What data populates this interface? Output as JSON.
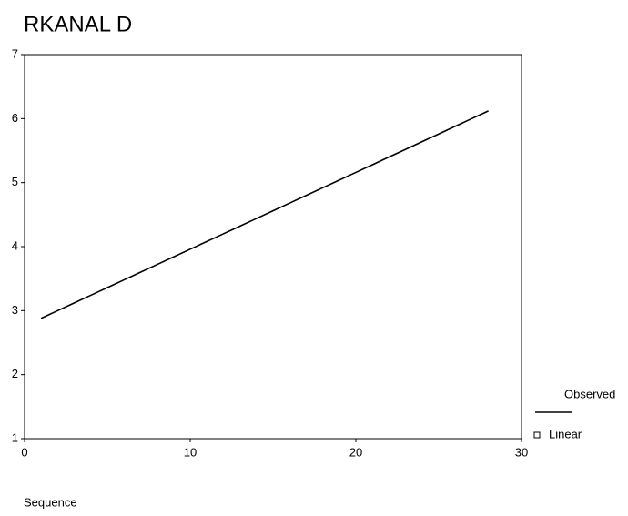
{
  "chart_data": {
    "type": "line",
    "title": "RKANAL D",
    "x_label": "Sequence",
    "x": [
      1,
      2,
      3,
      4,
      5,
      6,
      7,
      8,
      9,
      10,
      11,
      12,
      13,
      14,
      15,
      16,
      17,
      18,
      19,
      20,
      21,
      22,
      23,
      24,
      25,
      26,
      27,
      28
    ],
    "series": [
      {
        "name": "Observed",
        "color": "#000000",
        "values": [
          2.88,
          3,
          3.12,
          3.24,
          3.36,
          3.48,
          3.6,
          3.72,
          3.84,
          3.96,
          4.08,
          4.2,
          4.32,
          4.44,
          4.56,
          4.68,
          4.8,
          4.92,
          5.04,
          5.16,
          5.28,
          5.4,
          5.52,
          5.64,
          5.76,
          5.88,
          6,
          6.12
        ]
      }
    ],
    "legend": [
      {
        "name": "Observed",
        "marker": "line"
      },
      {
        "name": "Linear",
        "marker": "square"
      }
    ],
    "xlim": [
      0,
      30
    ],
    "xticks": [
      0,
      10,
      20,
      30
    ],
    "ylim": [
      1,
      7
    ],
    "yticks": [
      1,
      2,
      3,
      4,
      5,
      6,
      7
    ],
    "grid": false
  }
}
